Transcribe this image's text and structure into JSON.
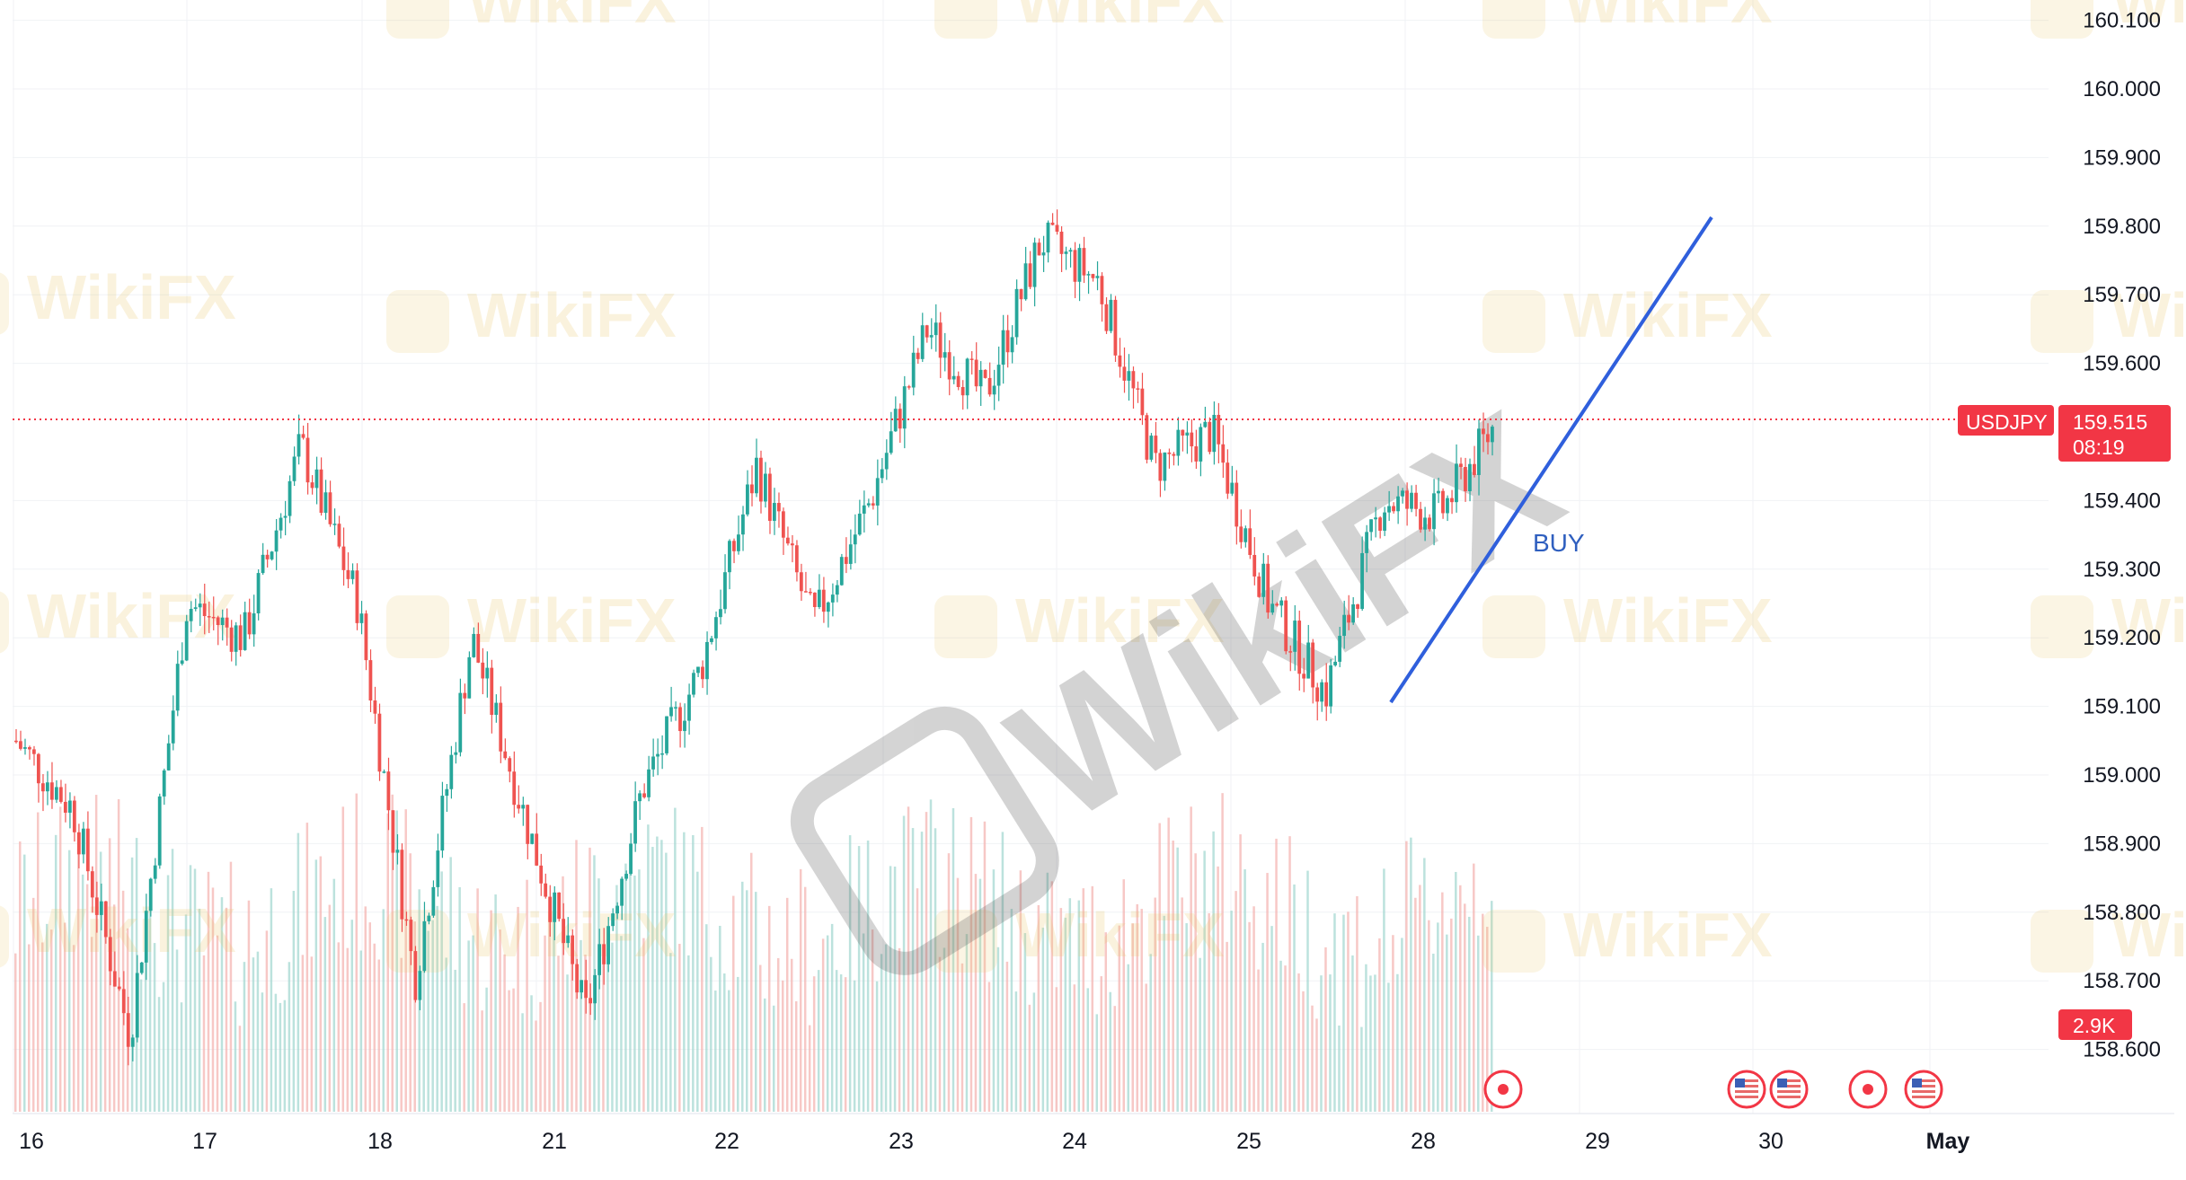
{
  "chart_data": {
    "type": "candlestick",
    "symbol": "USDJPY",
    "last_price": "159.515",
    "countdown": "08:19",
    "volume_label": "2.9K",
    "annotation": "BUY",
    "watermark": "WikiFX",
    "ylim": [
      158.55,
      160.12
    ],
    "price_ticks": [
      "160.100",
      "160.000",
      "159.900",
      "159.800",
      "159.700",
      "159.600",
      "159.400",
      "159.300",
      "159.200",
      "159.100",
      "159.000",
      "158.900",
      "158.800",
      "158.700",
      "158.600"
    ],
    "date_ticks": [
      "16",
      "17",
      "18",
      "21",
      "22",
      "23",
      "24",
      "25",
      "28",
      "29",
      "30",
      "May"
    ],
    "colors": {
      "up": "#26a69a",
      "down": "#ef5350",
      "vol_up": "#9fd6cf",
      "vol_down": "#f3b0ae",
      "tag": "#f23645",
      "trend": "#2f5fdc",
      "grid": "#f0f2f5"
    },
    "price_path": [
      {
        "day": "16",
        "open": 159.05,
        "high": 159.13,
        "low": 158.85,
        "close": 158.95
      },
      {
        "day": "16",
        "open": 158.95,
        "high": 159.0,
        "low": 158.58,
        "close": 158.62
      },
      {
        "day": "17",
        "open": 158.62,
        "high": 159.3,
        "low": 158.58,
        "close": 159.25
      },
      {
        "day": "17",
        "open": 159.25,
        "high": 159.42,
        "low": 159.1,
        "close": 159.2
      },
      {
        "day": "17",
        "open": 159.2,
        "high": 159.52,
        "low": 159.15,
        "close": 159.48
      },
      {
        "day": "18",
        "open": 159.48,
        "high": 159.52,
        "low": 159.2,
        "close": 159.25
      },
      {
        "day": "18",
        "open": 159.25,
        "high": 159.28,
        "low": 158.55,
        "close": 158.7
      },
      {
        "day": "18",
        "open": 158.7,
        "high": 159.22,
        "low": 158.55,
        "close": 159.2
      },
      {
        "day": "21",
        "open": 159.2,
        "high": 159.22,
        "low": 158.85,
        "close": 158.92
      },
      {
        "day": "21",
        "open": 158.92,
        "high": 159.0,
        "low": 158.58,
        "close": 158.65
      },
      {
        "day": "21",
        "open": 158.65,
        "high": 159.0,
        "low": 158.6,
        "close": 158.98
      },
      {
        "day": "22",
        "open": 158.98,
        "high": 159.2,
        "low": 158.88,
        "close": 159.15
      },
      {
        "day": "22",
        "open": 159.15,
        "high": 159.64,
        "low": 159.1,
        "close": 159.45
      },
      {
        "day": "22",
        "open": 159.45,
        "high": 159.5,
        "low": 159.12,
        "close": 159.22
      },
      {
        "day": "23",
        "open": 159.22,
        "high": 159.45,
        "low": 159.12,
        "close": 159.4
      },
      {
        "day": "23",
        "open": 159.4,
        "high": 159.72,
        "low": 159.3,
        "close": 159.65
      },
      {
        "day": "23",
        "open": 159.65,
        "high": 159.78,
        "low": 159.35,
        "close": 159.55
      },
      {
        "day": "24",
        "open": 159.55,
        "high": 159.84,
        "low": 159.45,
        "close": 159.78
      },
      {
        "day": "24",
        "open": 159.78,
        "high": 159.84,
        "low": 159.65,
        "close": 159.72
      },
      {
        "day": "24",
        "open": 159.72,
        "high": 159.75,
        "low": 159.35,
        "close": 159.45
      },
      {
        "day": "25",
        "open": 159.45,
        "high": 159.6,
        "low": 159.3,
        "close": 159.5
      },
      {
        "day": "25",
        "open": 159.5,
        "high": 159.58,
        "low": 159.2,
        "close": 159.25
      },
      {
        "day": "25",
        "open": 159.25,
        "high": 159.32,
        "low": 159.09,
        "close": 159.12
      },
      {
        "day": "28",
        "open": 159.12,
        "high": 159.45,
        "low": 159.1,
        "close": 159.4
      },
      {
        "day": "28",
        "open": 159.4,
        "high": 159.46,
        "low": 159.32,
        "close": 159.38
      },
      {
        "day": "28",
        "open": 159.38,
        "high": 159.56,
        "low": 159.33,
        "close": 159.515
      }
    ]
  }
}
